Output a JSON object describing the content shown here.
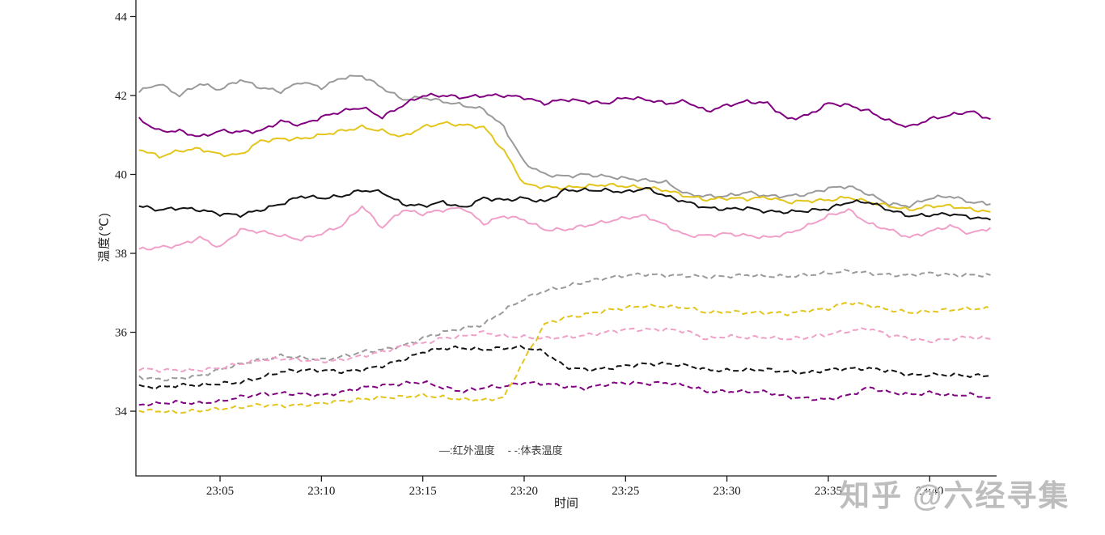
{
  "watermark_text": "知乎 @六经寻集",
  "chart_data": {
    "type": "line",
    "title": "",
    "xlabel": "时间",
    "ylabel": "温度(℃)",
    "grid": false,
    "legend_position": "bottom-center",
    "legend": [
      {
        "label": "—:红外温度",
        "style": "solid"
      },
      {
        "label": "- -:体表温度",
        "style": "dashed"
      }
    ],
    "ylim": [
      32.36,
      44.42
    ],
    "yticks": [
      34,
      36,
      38,
      40,
      42,
      44
    ],
    "xlim_minutes": [
      0.85,
      43.3
    ],
    "x_ticks": [
      {
        "m": 5,
        "label": "23:05"
      },
      {
        "m": 10,
        "label": "23:10"
      },
      {
        "m": 15,
        "label": "23:15"
      },
      {
        "m": 20,
        "label": "23:20"
      },
      {
        "m": 25,
        "label": "23:25"
      },
      {
        "m": 30,
        "label": "23:30"
      },
      {
        "m": 35,
        "label": "23:35"
      },
      {
        "m": 40,
        "label": "23:40"
      }
    ],
    "x_minutes": [
      1,
      2,
      3,
      4,
      5,
      6,
      7,
      8,
      9,
      10,
      11,
      12,
      13,
      14,
      15,
      16,
      17,
      18,
      19,
      20,
      21,
      22,
      23,
      24,
      25,
      26,
      27,
      28,
      29,
      30,
      31,
      32,
      33,
      34,
      35,
      36,
      37,
      38,
      39,
      40,
      41,
      42,
      43
    ],
    "series": [
      {
        "id": "infrared-gray",
        "group": "红外温度",
        "color": "#9a9a9a",
        "dash": false,
        "values": [
          42.1,
          42.3,
          42.0,
          42.3,
          42.15,
          42.4,
          42.2,
          42.1,
          42.35,
          42.2,
          42.45,
          42.5,
          42.2,
          41.9,
          41.95,
          41.85,
          41.75,
          41.65,
          41.2,
          40.3,
          40.0,
          39.95,
          40.0,
          39.95,
          39.9,
          39.85,
          39.8,
          39.5,
          39.45,
          39.45,
          39.55,
          39.45,
          39.45,
          39.5,
          39.65,
          39.7,
          39.5,
          39.25,
          39.2,
          39.4,
          39.45,
          39.3,
          39.25
        ]
      },
      {
        "id": "infrared-purple",
        "group": "红外温度",
        "color": "#800080",
        "dash": false,
        "values": [
          41.4,
          41.1,
          41.1,
          40.95,
          41.1,
          41.08,
          41.1,
          41.35,
          41.25,
          41.45,
          41.6,
          41.7,
          41.45,
          41.75,
          42.0,
          42.0,
          41.95,
          42.0,
          42.0,
          41.95,
          41.8,
          41.9,
          41.85,
          41.8,
          41.95,
          41.9,
          41.8,
          41.85,
          41.6,
          41.75,
          41.85,
          41.8,
          41.4,
          41.5,
          41.8,
          41.75,
          41.6,
          41.35,
          41.2,
          41.4,
          41.5,
          41.6,
          41.4
        ]
      },
      {
        "id": "infrared-yellow",
        "group": "红外温度",
        "color": "#e3c51c",
        "dash": false,
        "values": [
          40.65,
          40.45,
          40.6,
          40.65,
          40.5,
          40.5,
          40.85,
          40.9,
          40.9,
          41.0,
          41.1,
          41.2,
          41.1,
          40.95,
          41.2,
          41.3,
          41.25,
          41.2,
          40.6,
          39.75,
          39.68,
          39.66,
          39.7,
          39.74,
          39.7,
          39.66,
          39.6,
          39.45,
          39.36,
          39.4,
          39.38,
          39.42,
          39.3,
          39.33,
          39.35,
          39.42,
          39.3,
          39.2,
          39.1,
          39.2,
          39.2,
          39.12,
          39.05
        ]
      },
      {
        "id": "infrared-black",
        "group": "红外温度",
        "color": "#141414",
        "dash": false,
        "values": [
          39.2,
          39.1,
          39.15,
          39.1,
          39.0,
          38.97,
          39.1,
          39.25,
          39.45,
          39.4,
          39.45,
          39.6,
          39.55,
          39.25,
          39.2,
          39.3,
          39.15,
          39.4,
          39.35,
          39.4,
          39.3,
          39.6,
          39.6,
          39.6,
          39.55,
          39.65,
          39.45,
          39.3,
          39.15,
          39.12,
          39.15,
          39.06,
          39.05,
          39.08,
          39.13,
          39.3,
          39.3,
          39.1,
          38.95,
          38.97,
          39.0,
          38.92,
          38.85
        ]
      },
      {
        "id": "infrared-pink",
        "group": "红外温度",
        "color": "#f0a0c8",
        "dash": false,
        "values": [
          38.1,
          38.15,
          38.2,
          38.4,
          38.15,
          38.6,
          38.55,
          38.45,
          38.35,
          38.5,
          38.7,
          39.2,
          38.65,
          39.1,
          39.0,
          39.1,
          39.15,
          38.75,
          38.95,
          38.85,
          38.6,
          38.6,
          38.7,
          38.8,
          38.9,
          38.95,
          38.7,
          38.45,
          38.45,
          38.5,
          38.45,
          38.4,
          38.5,
          38.7,
          38.95,
          39.1,
          38.75,
          38.6,
          38.4,
          38.55,
          38.7,
          38.5,
          38.65
        ]
      },
      {
        "id": "surface-gray",
        "group": "体表温度",
        "color": "#9a9a9a",
        "dash": true,
        "values": [
          34.87,
          34.8,
          34.83,
          34.9,
          35.05,
          35.2,
          35.3,
          35.4,
          35.36,
          35.3,
          35.38,
          35.5,
          35.56,
          35.65,
          35.85,
          36.0,
          36.1,
          36.2,
          36.55,
          36.85,
          37.05,
          37.15,
          37.28,
          37.37,
          37.44,
          37.47,
          37.44,
          37.44,
          37.4,
          37.42,
          37.45,
          37.42,
          37.42,
          37.45,
          37.5,
          37.55,
          37.5,
          37.45,
          37.45,
          37.5,
          37.45,
          37.45,
          37.45
        ]
      },
      {
        "id": "surface-pink",
        "group": "体表温度",
        "color": "#f0a0c8",
        "dash": true,
        "values": [
          35.08,
          35.04,
          35.04,
          35.04,
          35.1,
          35.2,
          35.3,
          35.33,
          35.3,
          35.26,
          35.3,
          35.4,
          35.5,
          35.66,
          35.72,
          35.85,
          35.9,
          36.0,
          35.9,
          35.88,
          35.85,
          35.87,
          35.92,
          36.0,
          36.07,
          36.07,
          36.07,
          36.03,
          35.83,
          35.9,
          35.87,
          35.87,
          35.83,
          35.87,
          35.95,
          36.03,
          36.1,
          35.93,
          35.85,
          35.77,
          35.83,
          35.88,
          35.83
        ]
      },
      {
        "id": "surface-black",
        "group": "体表温度",
        "color": "#141414",
        "dash": true,
        "values": [
          34.63,
          34.6,
          34.66,
          34.66,
          34.7,
          34.73,
          34.85,
          35.0,
          35.04,
          35.04,
          35.0,
          35.05,
          35.15,
          35.3,
          35.5,
          35.6,
          35.6,
          35.56,
          35.6,
          35.62,
          35.5,
          35.13,
          35.05,
          35.08,
          35.15,
          35.2,
          35.2,
          35.16,
          35.05,
          35.03,
          35.05,
          35.05,
          35.0,
          34.97,
          35.05,
          35.08,
          35.08,
          35.03,
          34.92,
          34.92,
          34.92,
          34.9,
          34.9
        ]
      },
      {
        "id": "surface-purple",
        "group": "体表温度",
        "color": "#800080",
        "dash": true,
        "values": [
          34.16,
          34.2,
          34.23,
          34.2,
          34.25,
          34.36,
          34.43,
          34.45,
          34.44,
          34.4,
          34.48,
          34.6,
          34.65,
          34.7,
          34.74,
          34.6,
          34.5,
          34.6,
          34.63,
          34.72,
          34.7,
          34.63,
          34.58,
          34.68,
          34.72,
          34.7,
          34.72,
          34.65,
          34.5,
          34.5,
          34.5,
          34.48,
          34.36,
          34.32,
          34.3,
          34.4,
          34.6,
          34.48,
          34.42,
          34.47,
          34.4,
          34.42,
          34.34
        ]
      },
      {
        "id": "surface-yellow",
        "group": "体表温度",
        "color": "#e3c51c",
        "dash": true,
        "values": [
          34.02,
          34.0,
          33.97,
          34.02,
          34.06,
          34.1,
          34.16,
          34.14,
          34.15,
          34.2,
          34.26,
          34.3,
          34.35,
          34.36,
          34.4,
          34.35,
          34.3,
          34.28,
          34.35,
          35.3,
          36.2,
          36.37,
          36.45,
          36.55,
          36.62,
          36.67,
          36.65,
          36.63,
          36.5,
          36.52,
          36.5,
          36.5,
          36.47,
          36.55,
          36.6,
          36.76,
          36.68,
          36.57,
          36.5,
          36.53,
          36.57,
          36.6,
          36.6
        ]
      }
    ]
  }
}
